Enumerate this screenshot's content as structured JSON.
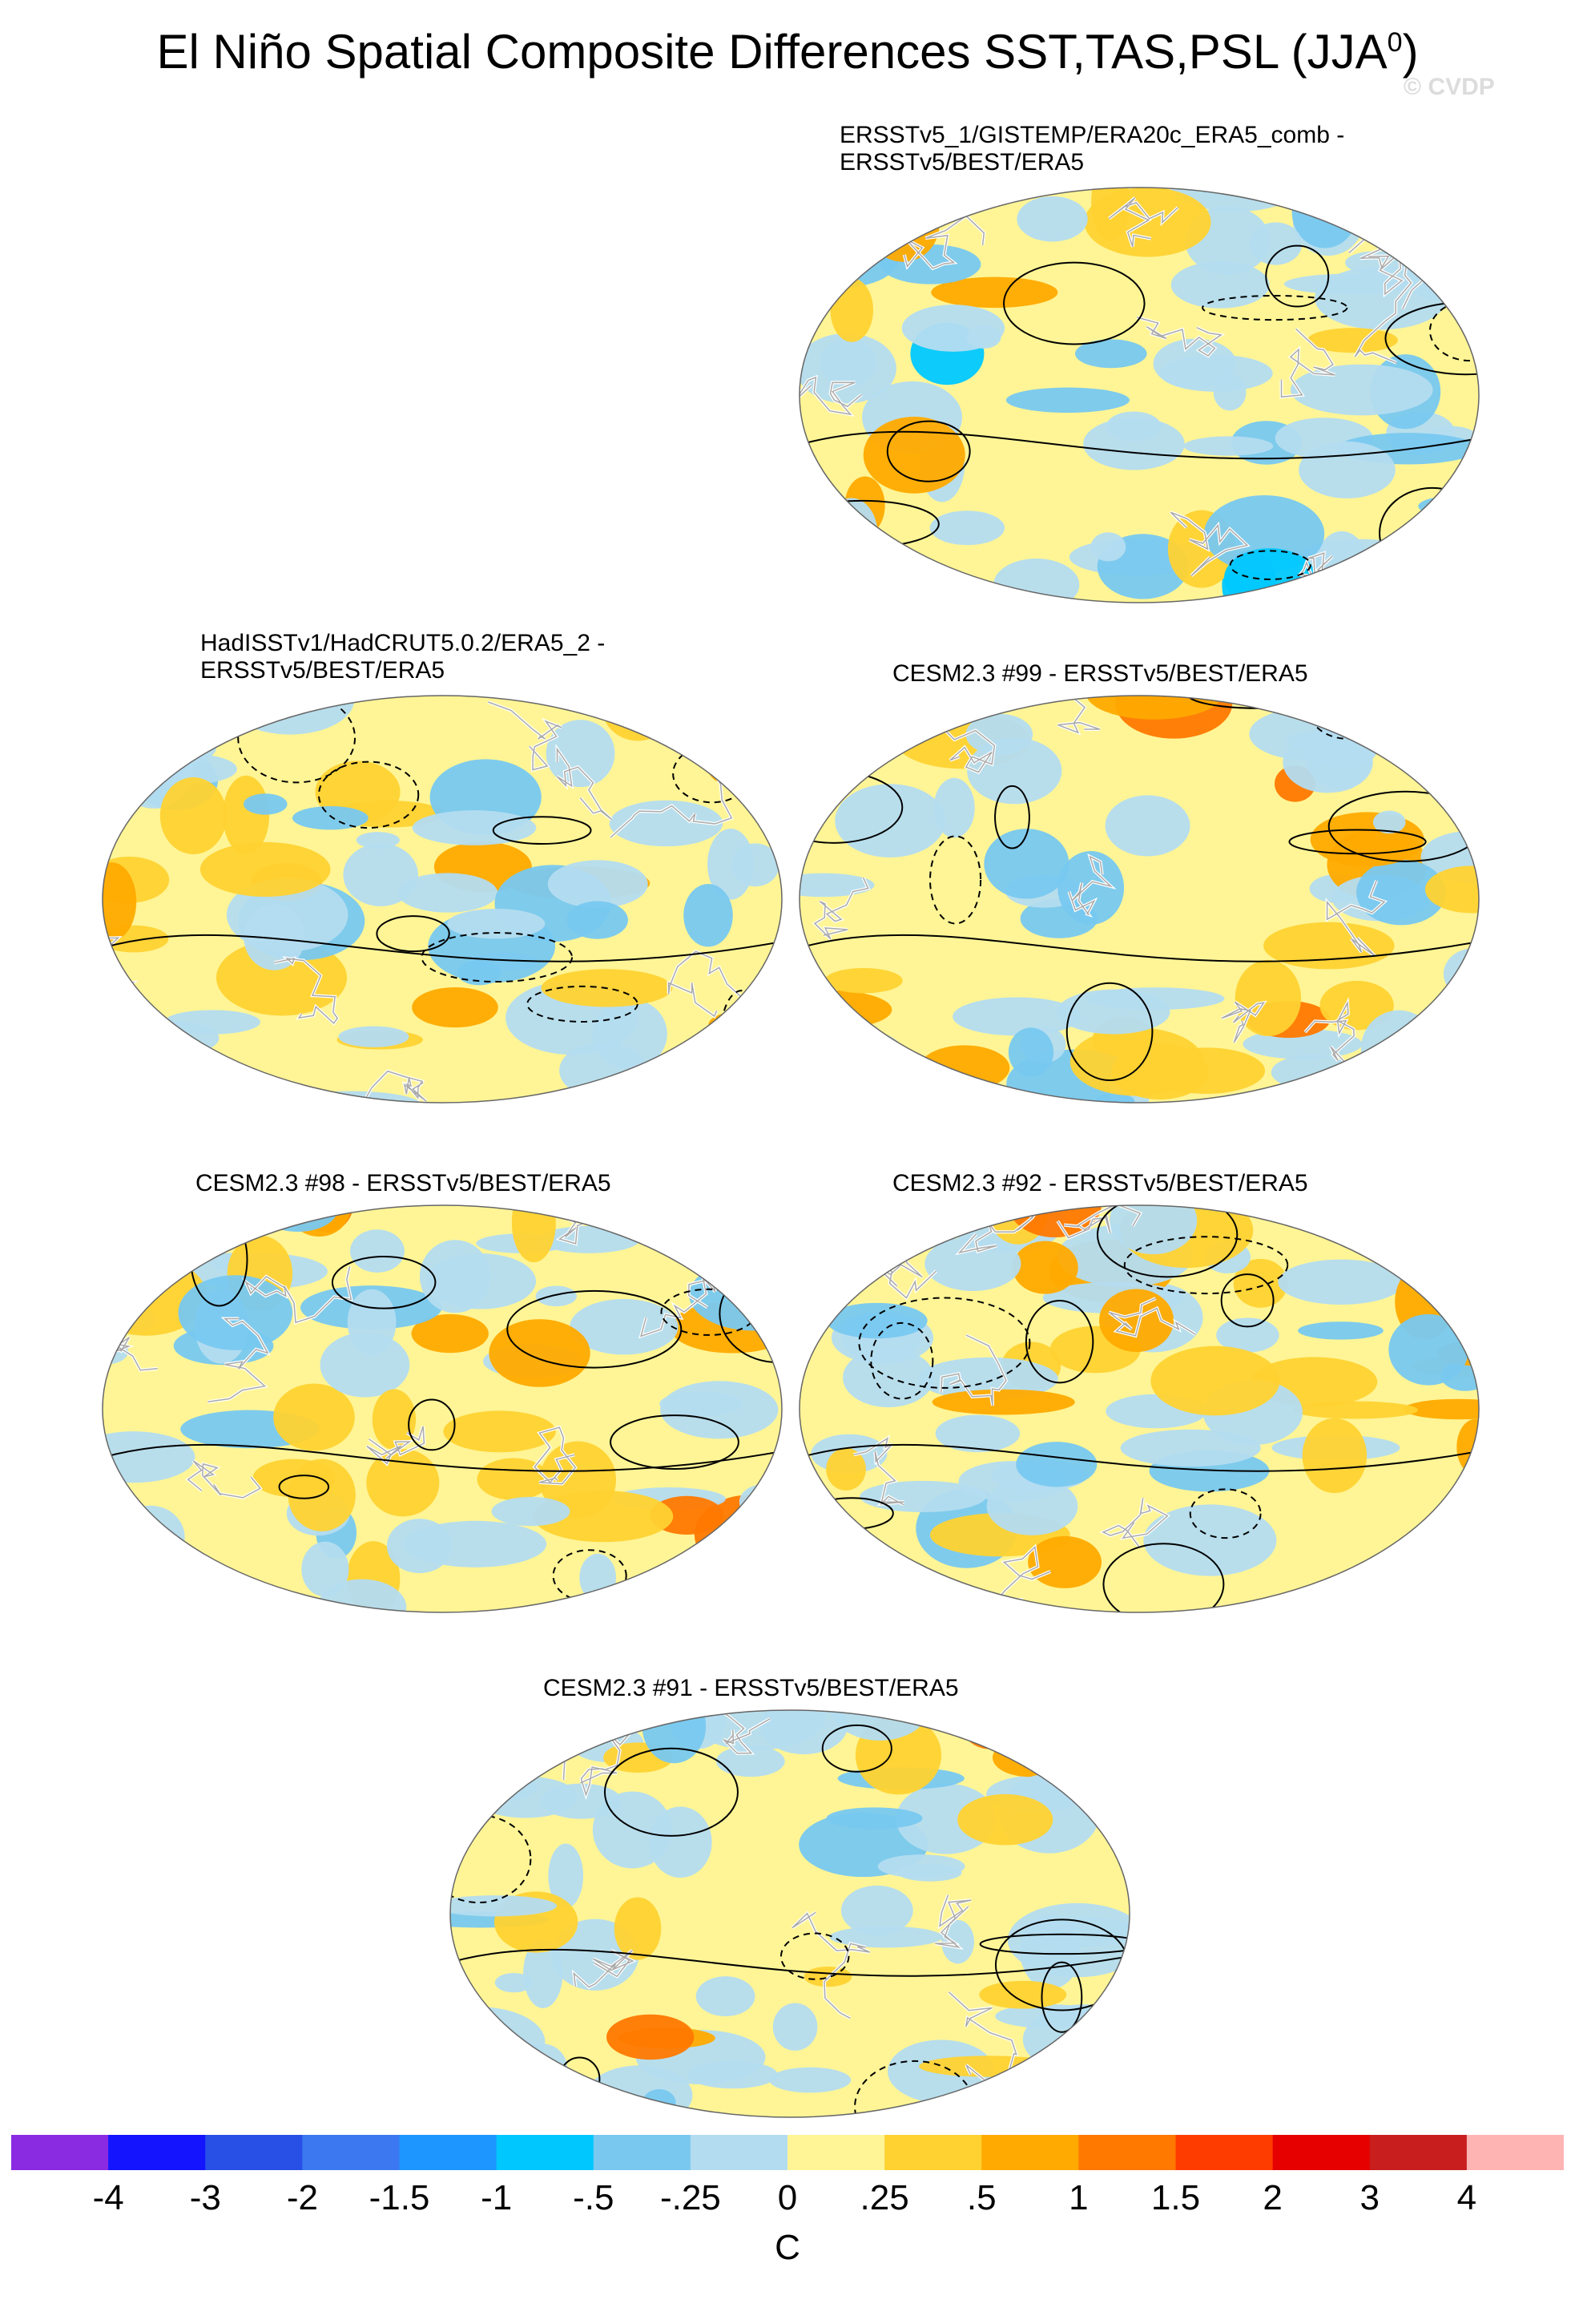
{
  "title": {
    "main": "El Niño Spatial Composite Differences SST,TAS,PSL (JJA",
    "superscript": "0",
    "suffix": ")"
  },
  "watermark": "© CVDP",
  "panels": [
    {
      "id": "ersst-comb",
      "title_lines": [
        "ERSSTv5_1/GISTEMP/ERA20c_ERA5_comb -",
        "ERSSTv5/BEST/ERA5"
      ]
    },
    {
      "id": "hadisst",
      "title_lines": [
        "HadISSTv1/HadCRUT5.0.2/ERA5_2 -",
        "ERSSTv5/BEST/ERA5"
      ]
    },
    {
      "id": "cesm-99",
      "title_lines": [
        "CESM2.3 #99 - ERSSTv5/BEST/ERA5"
      ]
    },
    {
      "id": "cesm-98",
      "title_lines": [
        "CESM2.3 #98 - ERSSTv5/BEST/ERA5"
      ]
    },
    {
      "id": "cesm-92",
      "title_lines": [
        "CESM2.3 #92 - ERSSTv5/BEST/ERA5"
      ]
    },
    {
      "id": "cesm-91",
      "title_lines": [
        "CESM2.3 #91 - ERSSTv5/BEST/ERA5"
      ]
    }
  ],
  "colorbar": {
    "units": "C",
    "labels": [
      "-4",
      "-3",
      "-2",
      "-1.5",
      "-1",
      "-.5",
      "-.25",
      "0",
      ".25",
      ".5",
      "1",
      "1.5",
      "2",
      "3",
      "4"
    ],
    "colors": [
      "#8a2be2",
      "#1414ff",
      "#2850e6",
      "#3c78f0",
      "#1e96ff",
      "#00c8ff",
      "#78c8f0",
      "#b4dcf0",
      "#fff596",
      "#ffd232",
      "#ffaa00",
      "#ff7800",
      "#ff3c00",
      "#e60000",
      "#c81e1e",
      "#ffb4b4"
    ]
  },
  "legend_colors": {
    "ocean_positive": "#fff596",
    "ocean_negative": "#b4dcf0",
    "continent_outline": "#aaaaaa",
    "contour": "#000000"
  }
}
